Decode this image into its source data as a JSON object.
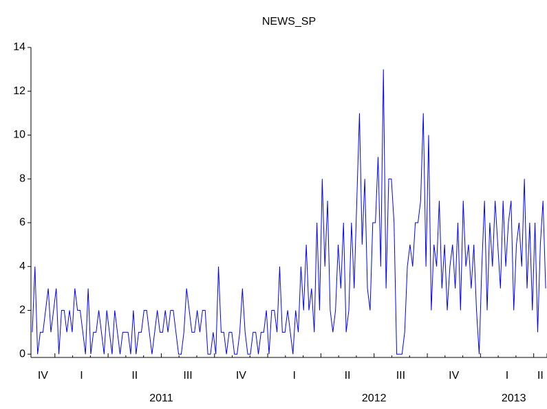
{
  "chart_data": {
    "type": "line",
    "title": "NEWS_SP",
    "color": "#0000ff",
    "ylim": [
      -0.15,
      14
    ],
    "yticks": [
      0,
      2,
      4,
      6,
      8,
      10,
      12,
      14
    ],
    "years": [
      {
        "label": null,
        "quarters": [
          {
            "label": "IV",
            "values": [
              1,
              4,
              0,
              1,
              1,
              2,
              3,
              1,
              2
            ]
          }
        ]
      },
      {
        "label": "2011",
        "quarters": [
          {
            "label": "I",
            "values": [
              3,
              0,
              2,
              2,
              1,
              2,
              1,
              3,
              2,
              2,
              1,
              0,
              3,
              0,
              1,
              1,
              2,
              1,
              0,
              2
            ]
          },
          {
            "label": "II",
            "values": [
              1,
              0,
              2,
              1,
              0,
              1,
              1,
              1,
              0,
              2,
              0,
              1,
              1,
              2,
              2,
              1,
              0,
              1,
              2,
              1
            ]
          },
          {
            "label": "III",
            "values": [
              1,
              2,
              1,
              2,
              2,
              1,
              0,
              0,
              1,
              3,
              2,
              1,
              1,
              2,
              1,
              2,
              2,
              0,
              0,
              1
            ]
          },
          {
            "label": "IV",
            "values": [
              0,
              4,
              1,
              1,
              0,
              1,
              1,
              0,
              0,
              1,
              3,
              1,
              0,
              0,
              1,
              1,
              0,
              1,
              1,
              2
            ]
          }
        ]
      },
      {
        "label": "2012",
        "quarters": [
          {
            "label": "I",
            "values": [
              0,
              2,
              2,
              1,
              4,
              1,
              1,
              2,
              1,
              0,
              2,
              1,
              4,
              2,
              5,
              2,
              3,
              1,
              6,
              2
            ]
          },
          {
            "label": "II",
            "values": [
              8,
              4,
              7,
              2,
              1,
              2,
              5,
              3,
              6,
              1,
              2,
              6,
              3,
              7,
              11,
              5,
              8,
              3,
              2,
              6
            ]
          },
          {
            "label": "III",
            "values": [
              6,
              9,
              4,
              13,
              3,
              8,
              8,
              6,
              0,
              0,
              0,
              1,
              4,
              5,
              4,
              6,
              6,
              7,
              11,
              4
            ]
          },
          {
            "label": "IV",
            "values": [
              10,
              2,
              5,
              4,
              7,
              3,
              5,
              2,
              4,
              5,
              3,
              6,
              2,
              7,
              4,
              5,
              3,
              5,
              2,
              0
            ]
          }
        ]
      },
      {
        "label": "2013",
        "quarters": [
          {
            "label": "I",
            "values": [
              4,
              7,
              2,
              6,
              4,
              7,
              5,
              3,
              7,
              4,
              6,
              7,
              2,
              5,
              6,
              4,
              8,
              3,
              6,
              2
            ]
          },
          {
            "label": "II",
            "values": [
              6,
              1,
              5,
              7,
              3
            ]
          }
        ]
      }
    ]
  }
}
